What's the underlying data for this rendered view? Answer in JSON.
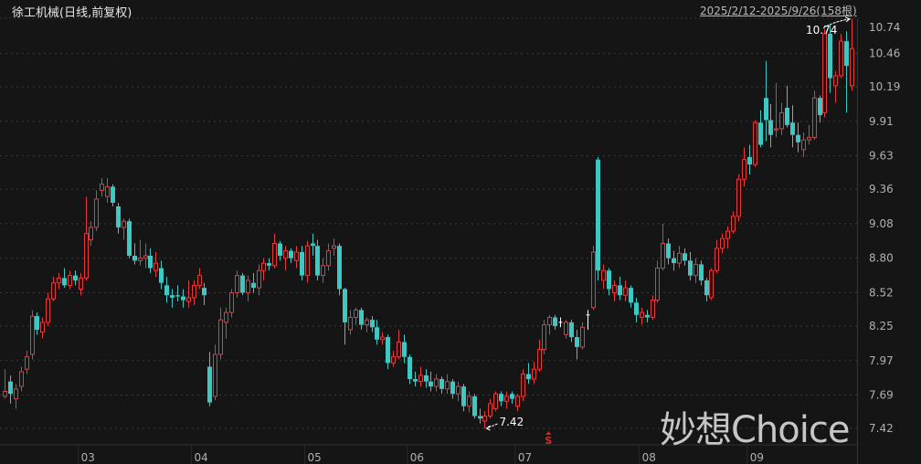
{
  "header": {
    "title": "徐工机械(日线,前复权)",
    "range": "2025/2/12-2025/9/26(158根)"
  },
  "watermark": "妙想Choice",
  "signal_marker": "S",
  "colors": {
    "up": "#e8393b",
    "down": "#3ec8c3",
    "doji": "#ffffff",
    "background": "#151515",
    "grid": "#3a3a3a",
    "signal": "#d62a2a"
  },
  "chart_data": {
    "type": "candlestick",
    "title": "徐工机械(日线,前复权)",
    "ylim": [
      7.42,
      10.74
    ],
    "y_ticks": [
      "10.74",
      "10.46",
      "10.19",
      "9.91",
      "9.63",
      "9.36",
      "9.08",
      "8.80",
      "8.52",
      "8.25",
      "7.97",
      "7.69",
      "7.42"
    ],
    "x_ticks": [
      {
        "label": "03",
        "index": 15
      },
      {
        "label": "04",
        "index": 36
      },
      {
        "label": "05",
        "index": 57
      },
      {
        "label": "06",
        "index": 76
      },
      {
        "label": "07",
        "index": 96
      },
      {
        "label": "08",
        "index": 119
      },
      {
        "label": "09",
        "index": 139
      }
    ],
    "grid": true,
    "max_label": "10.74",
    "min_label": "7.42",
    "signal_index": 101,
    "ohlc": [
      [
        7.68,
        7.9,
        7.66,
        7.72
      ],
      [
        7.8,
        7.85,
        7.62,
        7.7
      ],
      [
        7.66,
        7.78,
        7.58,
        7.74
      ],
      [
        7.76,
        7.92,
        7.72,
        7.88
      ],
      [
        7.9,
        8.05,
        7.86,
        8.0
      ],
      [
        8.02,
        8.38,
        7.98,
        8.33
      ],
      [
        8.33,
        8.36,
        8.18,
        8.22
      ],
      [
        8.2,
        8.32,
        8.15,
        8.28
      ],
      [
        8.28,
        8.52,
        8.25,
        8.47
      ],
      [
        8.47,
        8.65,
        8.45,
        8.6
      ],
      [
        8.6,
        8.68,
        8.55,
        8.64
      ],
      [
        8.64,
        8.72,
        8.56,
        8.58
      ],
      [
        8.58,
        8.7,
        8.55,
        8.66
      ],
      [
        8.66,
        8.7,
        8.58,
        8.62
      ],
      [
        8.55,
        8.68,
        8.5,
        8.64
      ],
      [
        8.64,
        9.3,
        8.62,
        9.0
      ],
      [
        8.95,
        9.1,
        8.9,
        9.05
      ],
      [
        9.05,
        9.35,
        9.02,
        9.28
      ],
      [
        9.35,
        9.45,
        9.3,
        9.4
      ],
      [
        9.3,
        9.45,
        9.25,
        9.38
      ],
      [
        9.38,
        9.4,
        9.22,
        9.25
      ],
      [
        9.22,
        9.25,
        9.0,
        9.05
      ],
      [
        9.05,
        9.12,
        8.95,
        9.1
      ],
      [
        9.1,
        9.12,
        8.8,
        8.82
      ],
      [
        8.82,
        8.92,
        8.75,
        8.78
      ],
      [
        8.78,
        8.95,
        8.74,
        8.8
      ],
      [
        8.8,
        8.92,
        8.72,
        8.82
      ],
      [
        8.82,
        8.88,
        8.68,
        8.72
      ],
      [
        8.7,
        8.85,
        8.65,
        8.76
      ],
      [
        8.72,
        8.78,
        8.55,
        8.6
      ],
      [
        8.58,
        8.65,
        8.44,
        8.5
      ],
      [
        8.5,
        8.55,
        8.4,
        8.48
      ],
      [
        8.5,
        8.58,
        8.45,
        8.49
      ],
      [
        8.49,
        8.55,
        8.4,
        8.46
      ],
      [
        8.45,
        8.62,
        8.4,
        8.48
      ],
      [
        8.48,
        8.62,
        8.42,
        8.58
      ],
      [
        8.58,
        8.72,
        8.55,
        8.66
      ],
      [
        8.56,
        8.6,
        8.42,
        8.5
      ],
      [
        7.92,
        8.04,
        7.6,
        7.63
      ],
      [
        7.68,
        8.1,
        7.65,
        8.02
      ],
      [
        8.02,
        8.4,
        7.98,
        8.3
      ],
      [
        8.28,
        8.4,
        8.15,
        8.36
      ],
      [
        8.36,
        8.55,
        8.32,
        8.52
      ],
      [
        8.52,
        8.7,
        8.48,
        8.66
      ],
      [
        8.66,
        8.68,
        8.5,
        8.52
      ],
      [
        8.52,
        8.66,
        8.45,
        8.62
      ],
      [
        8.6,
        8.68,
        8.52,
        8.56
      ],
      [
        8.56,
        8.75,
        8.5,
        8.7
      ],
      [
        8.7,
        8.8,
        8.62,
        8.76
      ],
      [
        8.76,
        8.8,
        8.7,
        8.74
      ],
      [
        8.74,
        9.0,
        8.72,
        8.92
      ],
      [
        8.92,
        8.94,
        8.78,
        8.82
      ],
      [
        8.8,
        8.9,
        8.7,
        8.86
      ],
      [
        8.86,
        8.88,
        8.76,
        8.8
      ],
      [
        8.78,
        8.9,
        8.72,
        8.85
      ],
      [
        8.85,
        8.9,
        8.62,
        8.66
      ],
      [
        8.66,
        8.94,
        8.6,
        8.9
      ],
      [
        8.92,
        9.0,
        8.82,
        8.9
      ],
      [
        8.9,
        8.95,
        8.62,
        8.66
      ],
      [
        8.66,
        8.8,
        8.6,
        8.74
      ],
      [
        8.74,
        8.92,
        8.7,
        8.86
      ],
      [
        8.88,
        8.96,
        8.82,
        8.9
      ],
      [
        8.9,
        8.92,
        8.5,
        8.55
      ],
      [
        8.55,
        8.56,
        8.1,
        8.28
      ],
      [
        8.22,
        8.38,
        8.18,
        8.32
      ],
      [
        8.32,
        8.4,
        8.26,
        8.38
      ],
      [
        8.38,
        8.4,
        8.22,
        8.26
      ],
      [
        8.26,
        8.32,
        8.2,
        8.3
      ],
      [
        8.3,
        8.33,
        8.2,
        8.24
      ],
      [
        8.24,
        8.3,
        8.1,
        8.14
      ],
      [
        8.14,
        8.2,
        8.1,
        8.16
      ],
      [
        8.16,
        8.18,
        7.9,
        7.95
      ],
      [
        7.95,
        8.05,
        7.92,
        8.0
      ],
      [
        8.0,
        8.22,
        7.98,
        8.12
      ],
      [
        8.12,
        8.18,
        7.95,
        8.0
      ],
      [
        8.0,
        8.02,
        7.78,
        7.82
      ],
      [
        7.82,
        7.88,
        7.76,
        7.8
      ],
      [
        7.8,
        7.92,
        7.76,
        7.85
      ],
      [
        7.85,
        7.9,
        7.75,
        7.8
      ],
      [
        7.8,
        7.88,
        7.72,
        7.76
      ],
      [
        7.76,
        7.86,
        7.72,
        7.82
      ],
      [
        7.82,
        7.84,
        7.7,
        7.74
      ],
      [
        7.74,
        7.86,
        7.7,
        7.8
      ],
      [
        7.8,
        7.82,
        7.66,
        7.7
      ],
      [
        7.7,
        7.8,
        7.64,
        7.76
      ],
      [
        7.76,
        7.78,
        7.56,
        7.6
      ],
      [
        7.6,
        7.72,
        7.55,
        7.68
      ],
      [
        7.68,
        7.7,
        7.5,
        7.52
      ],
      [
        7.52,
        7.58,
        7.46,
        7.5
      ],
      [
        7.48,
        7.56,
        7.42,
        7.52
      ],
      [
        7.52,
        7.66,
        7.5,
        7.62
      ],
      [
        7.58,
        7.72,
        7.56,
        7.7
      ],
      [
        7.7,
        7.72,
        7.6,
        7.64
      ],
      [
        7.64,
        7.72,
        7.58,
        7.68
      ],
      [
        7.7,
        7.72,
        7.62,
        7.66
      ],
      [
        7.6,
        7.7,
        7.56,
        7.68
      ],
      [
        7.68,
        7.9,
        7.64,
        7.86
      ],
      [
        7.86,
        7.95,
        7.78,
        7.82
      ],
      [
        7.82,
        7.96,
        7.78,
        7.9
      ],
      [
        7.9,
        8.14,
        7.88,
        8.06
      ],
      [
        8.06,
        8.3,
        8.02,
        8.26
      ],
      [
        8.26,
        8.34,
        8.18,
        8.32
      ],
      [
        8.32,
        8.34,
        8.22,
        8.25
      ],
      [
        8.28,
        8.32,
        8.24,
        8.28
      ],
      [
        8.18,
        8.3,
        8.15,
        8.28
      ],
      [
        8.28,
        8.3,
        8.12,
        8.16
      ],
      [
        8.16,
        8.22,
        7.98,
        8.08
      ],
      [
        8.08,
        8.28,
        8.06,
        8.24
      ],
      [
        8.34,
        8.38,
        8.22,
        8.34
      ],
      [
        8.4,
        8.9,
        8.38,
        8.85
      ],
      [
        9.6,
        9.62,
        8.62,
        8.7
      ],
      [
        8.62,
        8.75,
        8.55,
        8.7
      ],
      [
        8.7,
        8.72,
        8.5,
        8.55
      ],
      [
        8.52,
        8.62,
        8.45,
        8.58
      ],
      [
        8.58,
        8.65,
        8.46,
        8.5
      ],
      [
        8.5,
        8.62,
        8.45,
        8.56
      ],
      [
        8.56,
        8.58,
        8.4,
        8.44
      ],
      [
        8.44,
        8.48,
        8.28,
        8.34
      ],
      [
        8.32,
        8.4,
        8.26,
        8.36
      ],
      [
        8.34,
        8.38,
        8.28,
        8.32
      ],
      [
        8.32,
        8.5,
        8.3,
        8.46
      ],
      [
        8.46,
        8.78,
        8.44,
        8.72
      ],
      [
        8.72,
        9.08,
        8.7,
        8.92
      ],
      [
        8.92,
        8.96,
        8.75,
        8.8
      ],
      [
        8.8,
        8.86,
        8.7,
        8.76
      ],
      [
        8.76,
        8.9,
        8.72,
        8.84
      ],
      [
        8.84,
        8.88,
        8.74,
        8.78
      ],
      [
        8.78,
        8.85,
        8.62,
        8.66
      ],
      [
        8.66,
        8.8,
        8.6,
        8.75
      ],
      [
        8.75,
        8.78,
        8.58,
        8.62
      ],
      [
        8.62,
        8.64,
        8.45,
        8.5
      ],
      [
        8.48,
        8.72,
        8.46,
        8.7
      ],
      [
        8.7,
        8.95,
        8.68,
        8.88
      ],
      [
        8.88,
        9.0,
        8.84,
        8.96
      ],
      [
        8.96,
        9.06,
        8.88,
        9.02
      ],
      [
        9.02,
        9.18,
        9.0,
        9.14
      ],
      [
        9.14,
        9.48,
        9.1,
        9.44
      ],
      [
        9.44,
        9.7,
        9.38,
        9.6
      ],
      [
        9.62,
        9.72,
        9.48,
        9.56
      ],
      [
        9.56,
        9.92,
        9.54,
        9.9
      ],
      [
        9.9,
        10.0,
        9.7,
        9.72
      ],
      [
        10.1,
        10.4,
        9.75,
        9.92
      ],
      [
        9.92,
        10.05,
        9.7,
        9.8
      ],
      [
        9.84,
        10.22,
        9.78,
        9.85
      ],
      [
        9.85,
        10.06,
        9.8,
        9.98
      ],
      [
        10.02,
        10.2,
        9.86,
        9.88
      ],
      [
        9.9,
        10.04,
        9.7,
        9.8
      ],
      [
        9.8,
        9.9,
        9.66,
        9.74
      ],
      [
        9.68,
        9.82,
        9.62,
        9.76
      ],
      [
        9.76,
        9.88,
        9.72,
        9.78
      ],
      [
        9.78,
        10.16,
        9.76,
        10.1
      ],
      [
        10.1,
        10.12,
        9.9,
        9.96
      ],
      [
        9.98,
        10.66,
        9.94,
        10.62
      ],
      [
        10.62,
        10.7,
        10.14,
        10.26
      ],
      [
        10.2,
        10.32,
        10.06,
        10.28
      ],
      [
        10.28,
        10.62,
        10.26,
        10.56
      ],
      [
        10.56,
        10.64,
        9.98,
        10.36
      ],
      [
        10.2,
        10.74,
        10.16,
        10.5
      ]
    ]
  }
}
